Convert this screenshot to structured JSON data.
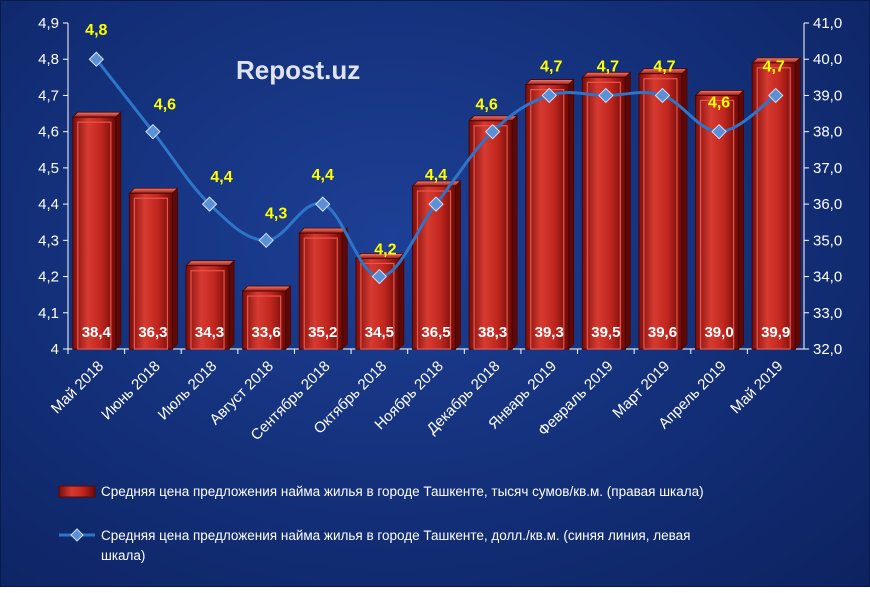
{
  "watermark": "Repost.uz",
  "chart_data": {
    "type": "bar+line",
    "categories": [
      "Май 2018",
      "Июнь 2018",
      "Июль 2018",
      "Август 2018",
      "Сентябрь 2018",
      "Октябрь 2018",
      "Ноябрь 2018",
      "Декабрь 2018",
      "Январь 2019",
      "Февраль 2019",
      "Март 2019",
      "Апрель 2019",
      "Май 2019"
    ],
    "bars": {
      "name": "Средняя цена предложения найма жилья в городе Ташкенте, тысяч сумов/кв.м. (правая шкала)",
      "axis": "right",
      "color": "#c0231f",
      "values": [
        38.4,
        36.3,
        34.3,
        33.6,
        35.2,
        34.5,
        36.5,
        38.3,
        39.3,
        39.5,
        39.6,
        39.0,
        39.9
      ],
      "labels": [
        "38,4",
        "36,3",
        "34,3",
        "33,6",
        "35,2",
        "34,5",
        "36,5",
        "38,3",
        "39,3",
        "39,5",
        "39,6",
        "39,0",
        "39,9"
      ]
    },
    "line": {
      "name": "Средняя цена предложения найма жилья в городе Ташкенте, долл./кв.м. (синяя линия, левая шкала)",
      "axis": "left",
      "color": "#2e75c8",
      "values": [
        4.8,
        4.6,
        4.4,
        4.3,
        4.4,
        4.2,
        4.4,
        4.6,
        4.7,
        4.7,
        4.7,
        4.6,
        4.7
      ],
      "labels": [
        "4,8",
        "4,6",
        "4,4",
        "4,3",
        "4,4",
        "4,2",
        "4,4",
        "4,6",
        "4,7",
        "4,7",
        "4,7",
        "4,6",
        "4,7"
      ]
    },
    "left_axis": {
      "ylim": [
        4.0,
        4.9
      ],
      "ticks": [
        "4",
        "4,1",
        "4,2",
        "4,3",
        "4,4",
        "4,5",
        "4,6",
        "4,7",
        "4,8",
        "4,9"
      ]
    },
    "right_axis": {
      "ylim": [
        32.0,
        41.0
      ],
      "ticks": [
        "32,0",
        "33,0",
        "34,0",
        "35,0",
        "36,0",
        "37,0",
        "38,0",
        "39,0",
        "40,0",
        "41,0"
      ]
    },
    "grid": false,
    "legend_position": "bottom"
  }
}
